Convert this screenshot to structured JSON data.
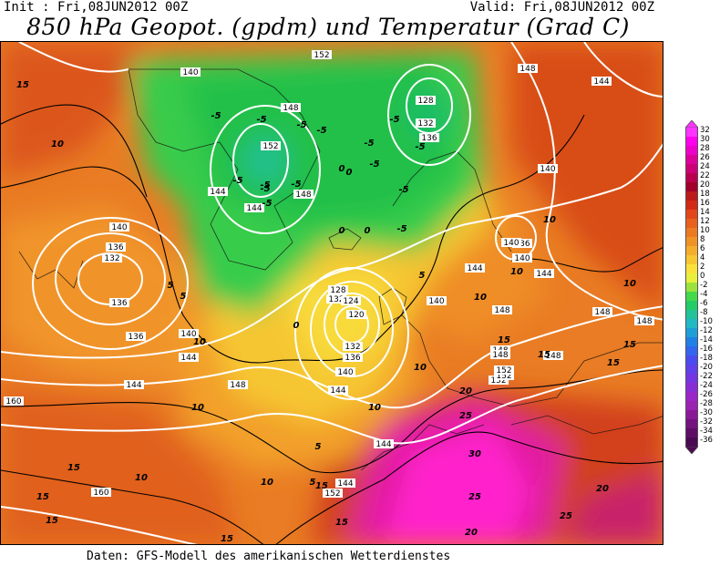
{
  "header": {
    "init": "Init : Fri,08JUN2012 00Z",
    "valid": "Valid: Fri,08JUN2012 00Z",
    "title": "850 hPa Geopot. (gpdm) und Temperatur (Grad C)"
  },
  "footer": "Daten: GFS-Modell des amerikanischen Wetterdienstes",
  "scale": {
    "labels": [
      "32",
      "30",
      "28",
      "26",
      "24",
      "22",
      "20",
      "18",
      "16",
      "14",
      "12",
      "10",
      "8",
      "6",
      "4",
      "2",
      "0",
      "-2",
      "-4",
      "-6",
      "-8",
      "-10",
      "-12",
      "-14",
      "-16",
      "-18",
      "-20",
      "-22",
      "-24",
      "-26",
      "-28",
      "-30",
      "-32",
      "-34",
      "-36"
    ],
    "colors": [
      "#ff33ff",
      "#ff00ee",
      "#ee00cc",
      "#dd0099",
      "#cc0077",
      "#b8004f",
      "#a0002a",
      "#bb1a1a",
      "#d22a14",
      "#e2471a",
      "#e8611e",
      "#ec7a22",
      "#f09326",
      "#f5ad2c",
      "#f8c632",
      "#fbe23a",
      "#e8f03c",
      "#9be33c",
      "#44d84a",
      "#22cc66",
      "#22c39a",
      "#22b8c4",
      "#1e9ed8",
      "#2080e6",
      "#3366ee",
      "#4a4cf0",
      "#6040e8",
      "#7436e0",
      "#8a2cd6",
      "#9a26c8",
      "#9c22b2",
      "#8a1a98",
      "#74147e",
      "#5e0e66",
      "#4a0a52"
    ]
  },
  "geopotential_labels": [
    "140",
    "152",
    "148",
    "128",
    "132",
    "136",
    "148",
    "144",
    "152",
    "148",
    "144",
    "144",
    "140",
    "136",
    "140",
    "136",
    "132",
    "136",
    "132",
    "140",
    "128",
    "124",
    "120",
    "136",
    "132",
    "140",
    "144",
    "144",
    "148",
    "152",
    "148",
    "148",
    "148",
    "144",
    "140",
    "140",
    "136",
    "144",
    "148",
    "144",
    "148",
    "152",
    "140",
    "144",
    "160",
    "152",
    "144",
    "148",
    "160",
    "152"
  ],
  "temperature_labels": [
    "15",
    "10",
    "-5",
    "-5",
    "-5",
    "-5",
    "-5",
    "-5",
    "-5",
    "-5",
    "0",
    "-5",
    "-5",
    "0",
    "-5",
    "-5",
    "-5",
    "-5",
    "-5",
    "5",
    "0",
    "5",
    "10",
    "5",
    "0",
    "0",
    "10",
    "10",
    "15",
    "10",
    "15",
    "15",
    "10",
    "10",
    "20",
    "25",
    "30",
    "25",
    "20",
    "15",
    "15",
    "10",
    "15",
    "15",
    "25",
    "20",
    "15",
    "15",
    "15",
    "10",
    "10",
    "5",
    "5",
    "10"
  ],
  "colors": {
    "magenta": "#ff00dd",
    "orange": "#e8751f",
    "deep_orange": "#d94a14",
    "yellow": "#f8d838",
    "green": "#33d04a"
  }
}
